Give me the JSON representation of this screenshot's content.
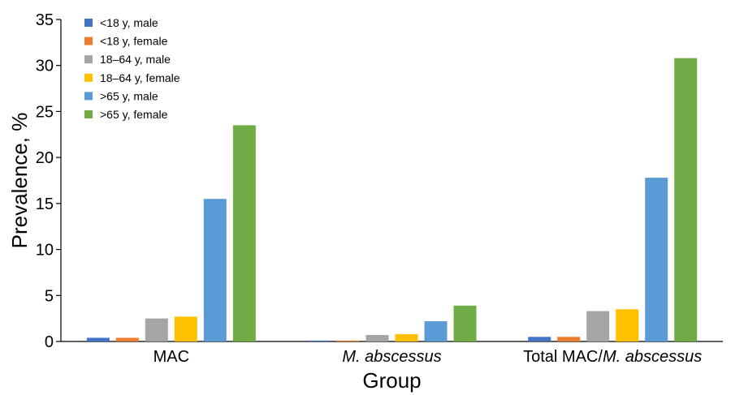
{
  "chart_data": {
    "type": "bar",
    "title": "",
    "xlabel": "Group",
    "ylabel": "Prevalence, %",
    "ylim": [
      0,
      35
    ],
    "yticks": [
      0,
      5,
      10,
      15,
      20,
      25,
      30,
      35
    ],
    "categories": [
      {
        "parts": [
          {
            "text": "MAC",
            "italic": false
          }
        ]
      },
      {
        "parts": [
          {
            "text": "M. abscessus",
            "italic": true
          }
        ]
      },
      {
        "parts": [
          {
            "text": "Total MAC/",
            "italic": false
          },
          {
            "text": "M. abscessus",
            "italic": true
          }
        ]
      }
    ],
    "series": [
      {
        "name": "<18 y, male",
        "color": "#4472C4",
        "values": [
          0.4,
          0.1,
          0.5
        ]
      },
      {
        "name": "<18 y, female",
        "color": "#ED7D31",
        "values": [
          0.4,
          0.1,
          0.5
        ]
      },
      {
        "name": "18–64 y, male",
        "color": "#A5A5A5",
        "values": [
          2.5,
          0.7,
          3.3
        ]
      },
      {
        "name": "18–64 y, female",
        "color": "#FFC000",
        "values": [
          2.7,
          0.8,
          3.5
        ]
      },
      {
        "name": ">65 y, male",
        "color": "#5B9BD5",
        "values": [
          15.5,
          2.2,
          17.8
        ]
      },
      {
        "name": ">65 y, female",
        "color": "#70AD47",
        "values": [
          23.5,
          3.9,
          30.8
        ]
      }
    ],
    "grid": false,
    "legend_position": "top-left"
  }
}
